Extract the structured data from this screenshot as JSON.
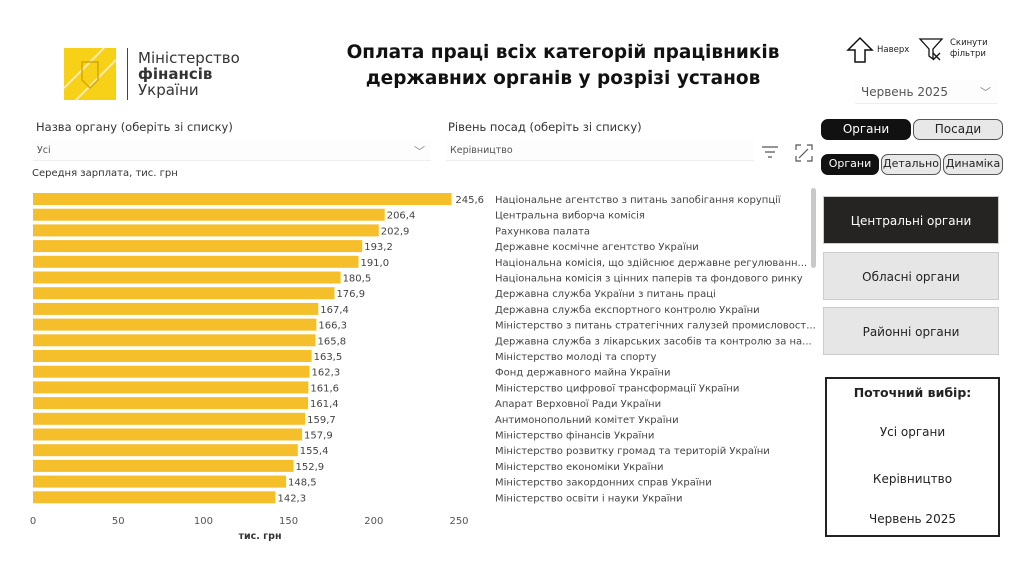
{
  "logo": {
    "line1": "Міністерство",
    "line2": "фінансів",
    "line3": "України"
  },
  "title": "Оплата праці всіх категорій працівників державних органів у розрізі установ",
  "toolbar": {
    "up_label": "Наверх",
    "reset_label_1": "Скинути",
    "reset_label_2": "фільтри",
    "up_icon": "arrow-up-icon",
    "reset_icon": "filter-clear-icon"
  },
  "period": "Червень 2025",
  "filters": {
    "organ_label": "Назва органу (оберіть зі списку)",
    "organ_value": "Усі",
    "level_label": "Рівень посад (оберіть зі списку)",
    "level_value": "Керівництво"
  },
  "toggle1": [
    "Органи",
    "Посади"
  ],
  "toggle2": [
    "Органи",
    "Детально",
    "Динаміка"
  ],
  "groups": [
    "Центральні органи",
    "Обласні органи",
    "Районні органи"
  ],
  "selection": {
    "title": "Поточний вибір:",
    "organ": "Усі органи",
    "level": "Керівництво",
    "period": "Червень 2025"
  },
  "colors": {
    "bar": "#F5BE2B",
    "active": "#252423"
  },
  "chart_data": {
    "type": "bar",
    "orientation": "horizontal",
    "ytitle": "Середня зарплата, тис. грн",
    "xlabel": "тис. грн",
    "xlim": [
      0,
      250
    ],
    "xticks": [
      0,
      50,
      100,
      150,
      200,
      250
    ],
    "categories": [
      "Національне агентство з питань запобігання корупції",
      "Центральна виборча комісія",
      "Рахункова палата",
      "Державне космічне агентство України",
      "Національна комісія, що здійснює державне регулюванн...",
      "Національна комісія з цінних паперів та фондового ринку",
      "Державна служба України з питань праці",
      "Державна служба експортного контролю України",
      "Міністерство з питань стратегічних галузей промисловост...",
      "Державна служба з лікарських засобів та контролю за на...",
      "Міністерство молоді та спорту",
      "Фонд державного майна України",
      "Міністерство цифрової трансформації України",
      "Апарат Верховної Ради України",
      "Антимонопольний комітет України",
      "Міністерство фінансів України",
      "Міністерство розвитку громад та територій України",
      "Міністерство економіки України",
      "Міністерство закордонних справ України",
      "Міністерство освіти і науки України"
    ],
    "values": [
      245.6,
      206.4,
      202.9,
      193.2,
      191.0,
      180.5,
      176.9,
      167.4,
      166.3,
      165.8,
      163.5,
      162.3,
      161.6,
      161.4,
      159.7,
      157.9,
      155.4,
      152.9,
      148.5,
      142.3
    ],
    "value_labels": [
      "245,6",
      "206,4",
      "202,9",
      "193,2",
      "191,0",
      "180,5",
      "176,9",
      "167,4",
      "166,3",
      "165,8",
      "163,5",
      "162,3",
      "161,6",
      "161,4",
      "159,7",
      "157,9",
      "155,4",
      "152,9",
      "148,5",
      "142,3"
    ]
  }
}
